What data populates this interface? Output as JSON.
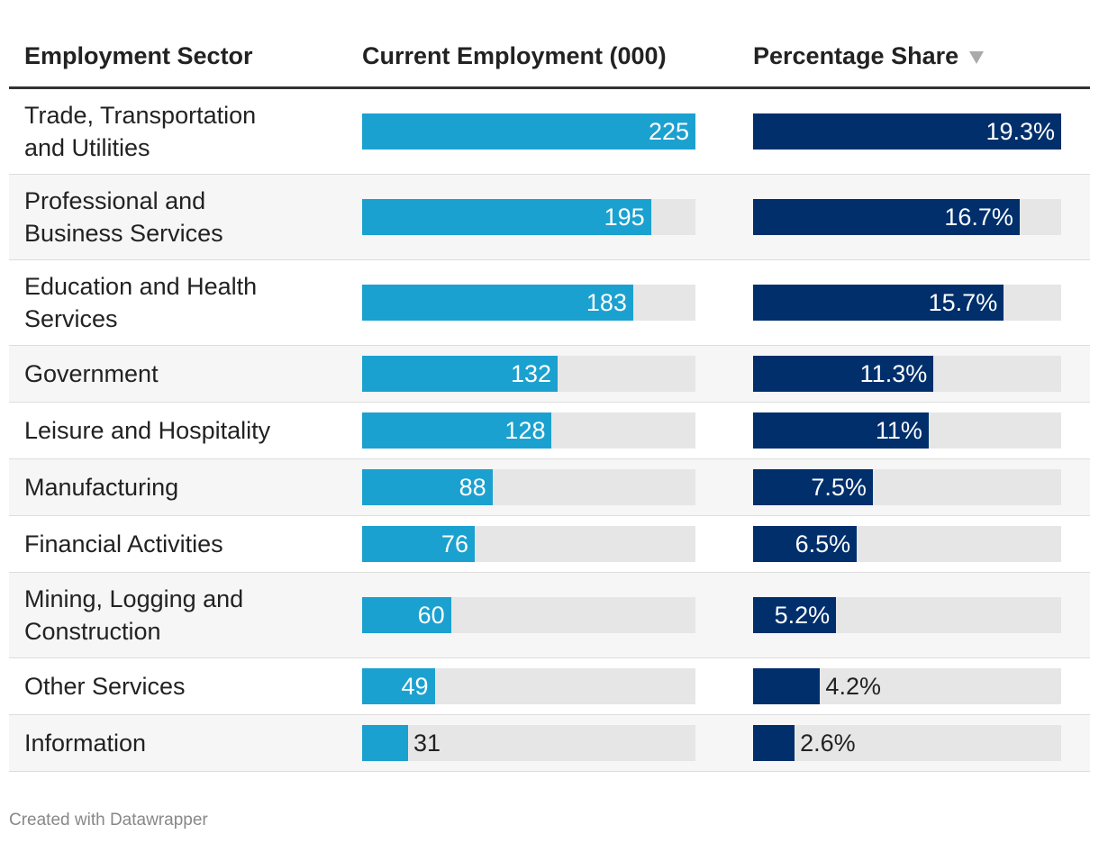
{
  "table": {
    "columns": [
      "Employment Sector",
      "Current Employment (000)",
      "Percentage Share"
    ],
    "rows": [
      "Trade, Transportation and Utilities",
      "Professional and Business Services",
      "Education and Health Services",
      "Government",
      "Leisure and Hospitality",
      "Manufacturing",
      "Financial Activities",
      "Mining, Logging and Construction",
      "Other Services",
      "Information"
    ],
    "employment": {
      "color": "#1ba1cf",
      "values": [
        225,
        195,
        183,
        132,
        128,
        88,
        76,
        60,
        49,
        31
      ]
    },
    "share": {
      "color": "#002f6c",
      "values": [
        19.3,
        16.7,
        15.7,
        11.3,
        11,
        7.5,
        6.5,
        5.2,
        4.2,
        2.6
      ],
      "value_labels": [
        "19.3%",
        "16.7%",
        "15.7%",
        "11.3%",
        "11%",
        "7.5%",
        "6.5%",
        "5.2%",
        "4.2%",
        "2.6%"
      ]
    }
  },
  "footer": "Created with Datawrapper"
}
